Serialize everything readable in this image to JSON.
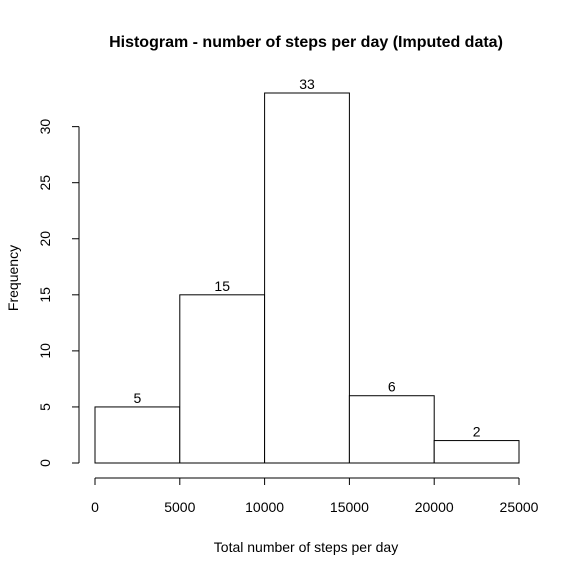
{
  "chart_data": {
    "type": "bar",
    "title": "Histogram - number of steps per day (Imputed data)",
    "xlabel": "Total number of steps per day",
    "ylabel": "Frequency",
    "bins": [
      {
        "start": 0,
        "end": 5000,
        "count": 5,
        "label": "5"
      },
      {
        "start": 5000,
        "end": 10000,
        "count": 15,
        "label": "15"
      },
      {
        "start": 10000,
        "end": 15000,
        "count": 33,
        "label": "33"
      },
      {
        "start": 15000,
        "end": 20000,
        "count": 6,
        "label": "6"
      },
      {
        "start": 20000,
        "end": 25000,
        "count": 2,
        "label": "2"
      }
    ],
    "xlim": [
      0,
      25000
    ],
    "ylim": [
      0,
      33
    ],
    "x_ticks": [
      "0",
      "5000",
      "10000",
      "15000",
      "20000",
      "25000"
    ],
    "y_ticks": [
      "0",
      "5",
      "10",
      "15",
      "20",
      "25",
      "30"
    ],
    "grid": false,
    "bar_fill": "#ffffff",
    "bar_stroke": "#000000"
  }
}
